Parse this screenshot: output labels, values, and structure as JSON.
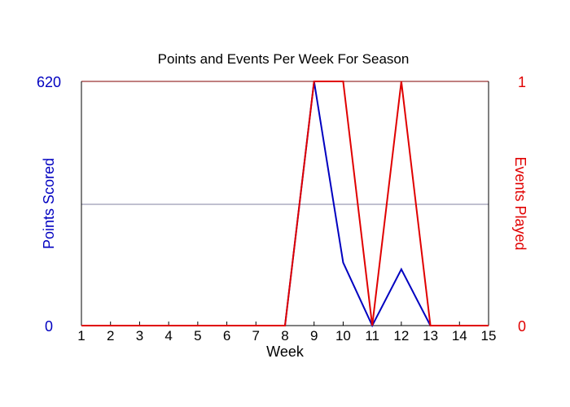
{
  "chart_data": {
    "type": "line",
    "title": "Points and Events Per Week For Season",
    "xlabel": "Week",
    "ylabel_left": "Points Scored",
    "ylabel_right": "Events Played",
    "x": [
      1,
      2,
      3,
      4,
      5,
      6,
      7,
      8,
      9,
      10,
      11,
      12,
      13,
      14,
      15
    ],
    "xlim": [
      1,
      15
    ],
    "ylim_left": [
      0,
      620
    ],
    "ylim_right": [
      0,
      1
    ],
    "left_ticks": [
      "620",
      "0"
    ],
    "right_ticks": [
      "1",
      "0"
    ],
    "grid": "single horizontal line at midpoint",
    "series": [
      {
        "axis": "left",
        "color": "#0000c0",
        "values": [
          0,
          0,
          0,
          0,
          0,
          0,
          0,
          0,
          620,
          160,
          0,
          143,
          0,
          0,
          0
        ]
      },
      {
        "axis": "right",
        "color": "#e00000",
        "values": [
          0,
          0,
          0,
          0,
          0,
          0,
          0,
          0,
          1,
          1,
          0,
          1,
          0,
          0,
          0
        ]
      }
    ]
  }
}
